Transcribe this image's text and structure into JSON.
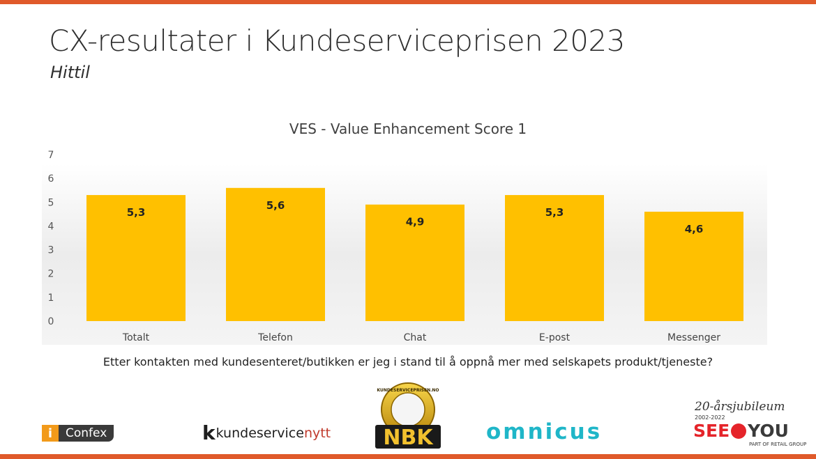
{
  "slide": {
    "title": "CX-resultater i Kundeserviceprisen 2023",
    "subtitle": "Hittil",
    "question": "Etter kontakten med kundesenteret/butikken er jeg i stand til å oppnå mer med selskapets produkt/tjeneste?"
  },
  "logos": {
    "confex_i": "i",
    "confex_name": "Confex",
    "ksn_main": "kundeservice",
    "ksn_accent": "nytt",
    "nbk_text": "NBK",
    "nbk_ring": "KUNDESERVICEPRISEN.NO",
    "omnicus": "omnicus",
    "seeyou_jubilee": "20-årsjubileum",
    "seeyou_years": "2002-2022",
    "seeyou_see": "SEE",
    "seeyou_you": "YOU",
    "seeyou_part": "PART OF RETAIL GROUP"
  },
  "colors": {
    "bar": "#ffc000",
    "accent_bar": "#e05a2a"
  },
  "chart_data": {
    "type": "bar",
    "title": "VES - Value Enhancement Score 1",
    "categories": [
      "Totalt",
      "Telefon",
      "Chat",
      "E-post",
      "Messenger"
    ],
    "values": [
      5.3,
      5.6,
      4.9,
      5.3,
      4.6
    ],
    "value_labels": [
      "5,3",
      "5,6",
      "4,9",
      "5,3",
      "4,6"
    ],
    "yticks": [
      0,
      1,
      2,
      3,
      4,
      5,
      6,
      7
    ],
    "ylim": [
      0,
      7
    ],
    "xlabel": "",
    "ylabel": "",
    "grid": false,
    "legend": "none"
  }
}
